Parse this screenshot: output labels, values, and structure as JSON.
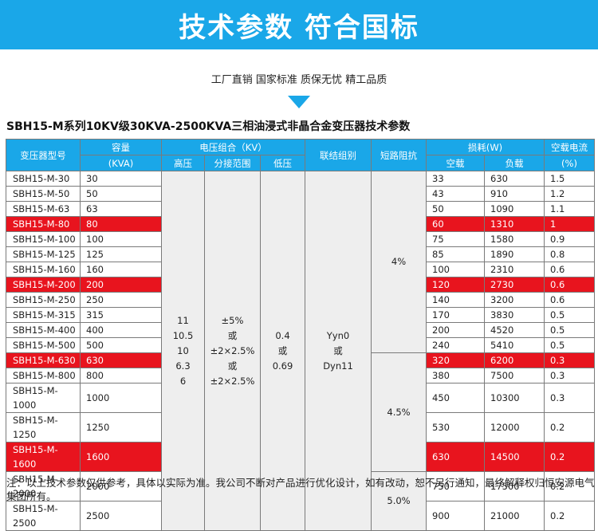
{
  "header": {
    "title": "技术参数 符合国标",
    "tagline": "工厂直销 国家标准 质保无忧 精工品质"
  },
  "table_title": "SBH15-M系列10KV级30KVA-2500KVA三相油浸式非晶合金变压器技术参数",
  "columns": {
    "model": "变压器型号",
    "capacity": "容量",
    "capacity_unit": "(KVA)",
    "voltage_group": "电压组合（KV）",
    "hv": "高压",
    "tap": "分接范围",
    "lv": "低压",
    "vector": "联结组别",
    "impedance": "短路阻抗",
    "loss_group": "损耗(W)",
    "no_load": "空载",
    "load": "负载",
    "current": "空载电流",
    "current_unit": "(%)"
  },
  "merged": {
    "hv": [
      "11",
      "10.5",
      "10",
      "6.3",
      "6"
    ],
    "tap": [
      "±5%",
      "或",
      "±2×2.5%",
      "或",
      "±2×2.5%"
    ],
    "lv": [
      "0.4",
      "或",
      "0.69"
    ],
    "vector": [
      "Yyn0",
      "或",
      "Dyn11"
    ],
    "impedance_1": "4%",
    "impedance_2": "4.5%",
    "impedance_3": "5.0%"
  },
  "rows": [
    {
      "model": "SBH15-M-30",
      "capacity": "30",
      "no_load": "33",
      "load": "630",
      "current": "1.5",
      "highlight": false
    },
    {
      "model": "SBH15-M-50",
      "capacity": "50",
      "no_load": "43",
      "load": "910",
      "current": "1.2",
      "highlight": false
    },
    {
      "model": "SBH15-M-63",
      "capacity": "63",
      "no_load": "50",
      "load": "1090",
      "current": "1.1",
      "highlight": false
    },
    {
      "model": "SBH15-M-80",
      "capacity": "80",
      "no_load": "60",
      "load": "1310",
      "current": "1",
      "highlight": true
    },
    {
      "model": "SBH15-M-100",
      "capacity": "100",
      "no_load": "75",
      "load": "1580",
      "current": "0.9",
      "highlight": false
    },
    {
      "model": "SBH15-M-125",
      "capacity": "125",
      "no_load": "85",
      "load": "1890",
      "current": "0.8",
      "highlight": false
    },
    {
      "model": "SBH15-M-160",
      "capacity": "160",
      "no_load": "100",
      "load": "2310",
      "current": "0.6",
      "highlight": false
    },
    {
      "model": "SBH15-M-200",
      "capacity": "200",
      "no_load": "120",
      "load": "2730",
      "current": "0.6",
      "highlight": true
    },
    {
      "model": "SBH15-M-250",
      "capacity": "250",
      "no_load": "140",
      "load": "3200",
      "current": "0.6",
      "highlight": false
    },
    {
      "model": "SBH15-M-315",
      "capacity": "315",
      "no_load": "170",
      "load": "3830",
      "current": "0.5",
      "highlight": false
    },
    {
      "model": "SBH15-M-400",
      "capacity": "400",
      "no_load": "200",
      "load": "4520",
      "current": "0.5",
      "highlight": false
    },
    {
      "model": "SBH15-M-500",
      "capacity": "500",
      "no_load": "240",
      "load": "5410",
      "current": "0.5",
      "highlight": false
    },
    {
      "model": "SBH15-M-630",
      "capacity": "630",
      "no_load": "320",
      "load": "6200",
      "current": "0.3",
      "highlight": true
    },
    {
      "model": "SBH15-M-800",
      "capacity": "800",
      "no_load": "380",
      "load": "7500",
      "current": "0.3",
      "highlight": false
    },
    {
      "model": "SBH15-M-1000",
      "capacity": "1000",
      "no_load": "450",
      "load": "10300",
      "current": "0.3",
      "highlight": false
    },
    {
      "model": "SBH15-M-1250",
      "capacity": "1250",
      "no_load": "530",
      "load": "12000",
      "current": "0.2",
      "highlight": false
    },
    {
      "model": "SBH15-M-1600",
      "capacity": "1600",
      "no_load": "630",
      "load": "14500",
      "current": "0.2",
      "highlight": true
    },
    {
      "model": "SBH15-M-2000",
      "capacity": "2000",
      "no_load": "750",
      "load": "17500",
      "current": "0.2",
      "highlight": false
    },
    {
      "model": "SBH15-M-2500",
      "capacity": "2500",
      "no_load": "900",
      "load": "21000",
      "current": "0.2",
      "highlight": false
    }
  ],
  "note": "注：以上技术参数仅供参考，具体以实际为准。我公司不断对产品进行优化设计，如有改动，恕不另行通知，最终解释权归恒安源电气集团所有。",
  "colors": {
    "header_blue": "#1aa7e8",
    "highlight_red": "#e8141e",
    "merged_gray": "#eeeeee"
  }
}
